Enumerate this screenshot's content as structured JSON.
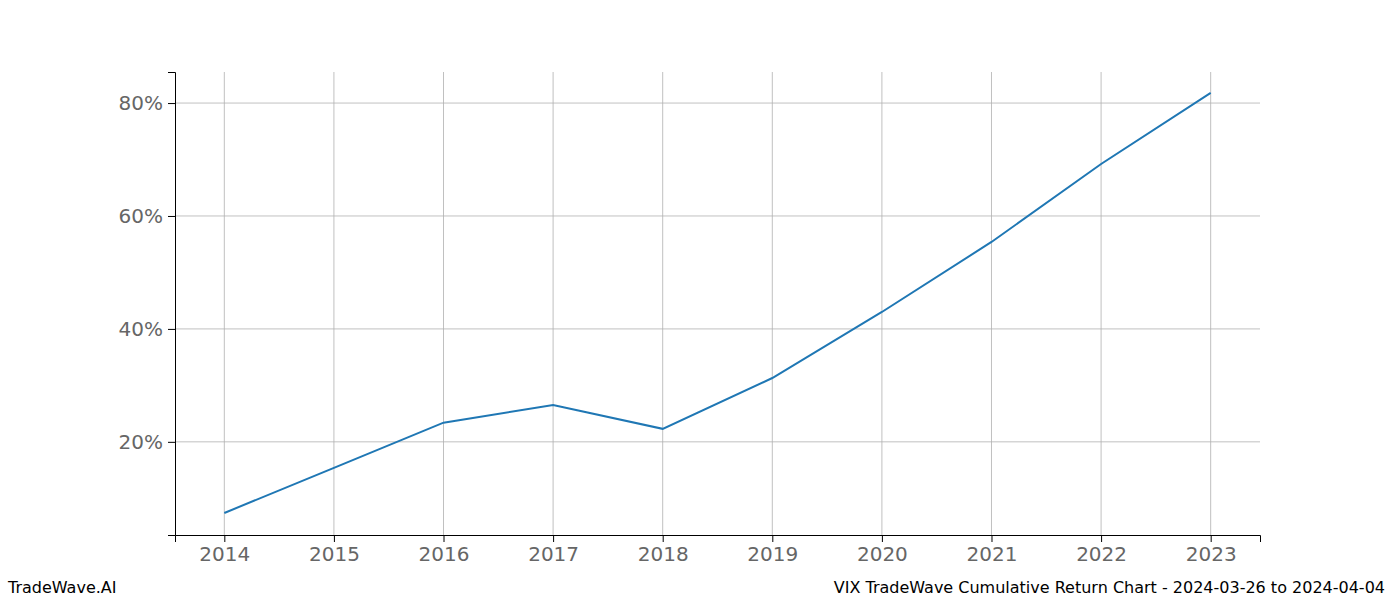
{
  "chart_data": {
    "type": "line",
    "title": "VIX TradeWave Cumulative Return Chart - 2024-03-26 to 2024-04-04",
    "watermark": "TradeWave.AI",
    "x": [
      2014,
      2015,
      2016,
      2017,
      2018,
      2019,
      2020,
      2021,
      2022,
      2023
    ],
    "values": [
      7.4,
      15.4,
      23.4,
      26.5,
      22.3,
      31.3,
      43.0,
      55.4,
      69.2,
      81.8
    ],
    "color": "#1f77b4",
    "xlim": [
      2013.55,
      2023.45
    ],
    "xticks": [
      2014,
      2015,
      2016,
      2017,
      2018,
      2019,
      2020,
      2021,
      2022,
      2023
    ],
    "ylim": [
      3.5,
      85.5
    ],
    "yticks": [
      {
        "value": 20,
        "label": "20%"
      },
      {
        "value": 40,
        "label": "40%"
      },
      {
        "value": 60,
        "label": "60%"
      },
      {
        "value": 80,
        "label": "80%"
      }
    ],
    "grid": true
  }
}
